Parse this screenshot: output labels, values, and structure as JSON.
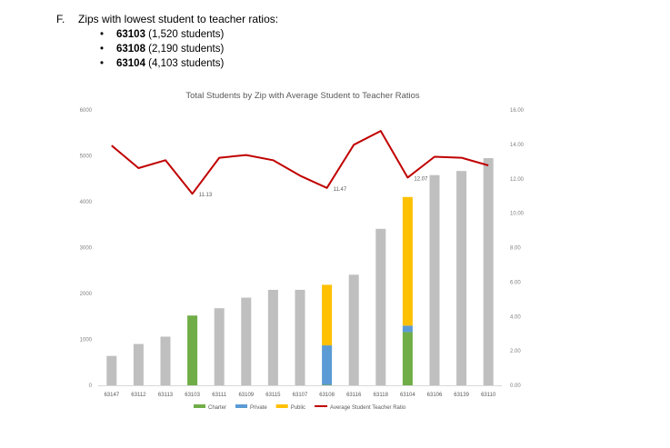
{
  "section": {
    "marker": "F.",
    "title": "Zips with lowest student to teacher ratios:",
    "items": [
      {
        "bullet": "•",
        "zip": "63103",
        "detail": " (1,520 students)"
      },
      {
        "bullet": "•",
        "zip": "63108",
        "detail": " (2,190 students)"
      },
      {
        "bullet": "•",
        "zip": "63104",
        "detail": " (4,103 students)"
      }
    ]
  },
  "chart_data": {
    "type": "bar",
    "title": "Total Students by Zip with Average Student to Teacher Ratios",
    "categories": [
      "63147",
      "63112",
      "63113",
      "63103",
      "63111",
      "63109",
      "63115",
      "63107",
      "63108",
      "63116",
      "63118",
      "63104",
      "63106",
      "63139",
      "63110"
    ],
    "totals": [
      640,
      900,
      1060,
      1520,
      1680,
      1910,
      2080,
      2080,
      2190,
      2410,
      3410,
      4103,
      4580,
      4670,
      4950
    ],
    "series": [
      {
        "name": "Charter",
        "color": "#70ad47",
        "values": [
          0,
          0,
          0,
          1520,
          0,
          0,
          0,
          0,
          10,
          0,
          0,
          1160,
          0,
          0,
          0
        ]
      },
      {
        "name": "Private",
        "color": "#5b9bd5",
        "values": [
          0,
          0,
          0,
          0,
          0,
          0,
          0,
          0,
          860,
          0,
          0,
          140,
          0,
          0,
          0
        ]
      },
      {
        "name": "Public",
        "color": "#ffc000",
        "values": [
          0,
          0,
          0,
          0,
          0,
          0,
          0,
          0,
          1320,
          0,
          0,
          2803,
          0,
          0,
          0
        ]
      }
    ],
    "other_color": "#bfbfbf",
    "line": {
      "name": "Average Student Teacher Ratio",
      "color": "#c00000",
      "values": [
        13.93,
        12.62,
        13.08,
        11.13,
        13.22,
        13.38,
        13.08,
        12.18,
        11.47,
        13.98,
        14.78,
        12.07,
        13.28,
        13.22,
        12.78
      ]
    },
    "labels": [
      {
        "index": 3,
        "text": "11.13"
      },
      {
        "index": 8,
        "text": "11.47"
      },
      {
        "index": 11,
        "text": "12.07"
      }
    ],
    "y_ticks": [
      "0",
      "1000",
      "2000",
      "3000",
      "4000",
      "5000",
      "6000"
    ],
    "y2_ticks": [
      "0.00",
      "2.00",
      "4.00",
      "6.00",
      "8.00",
      "10.00",
      "12.00",
      "14.00",
      "16.00"
    ],
    "ylim": [
      0,
      6000
    ],
    "y2lim": [
      0,
      16
    ],
    "legend": "bottom",
    "grid": false
  }
}
